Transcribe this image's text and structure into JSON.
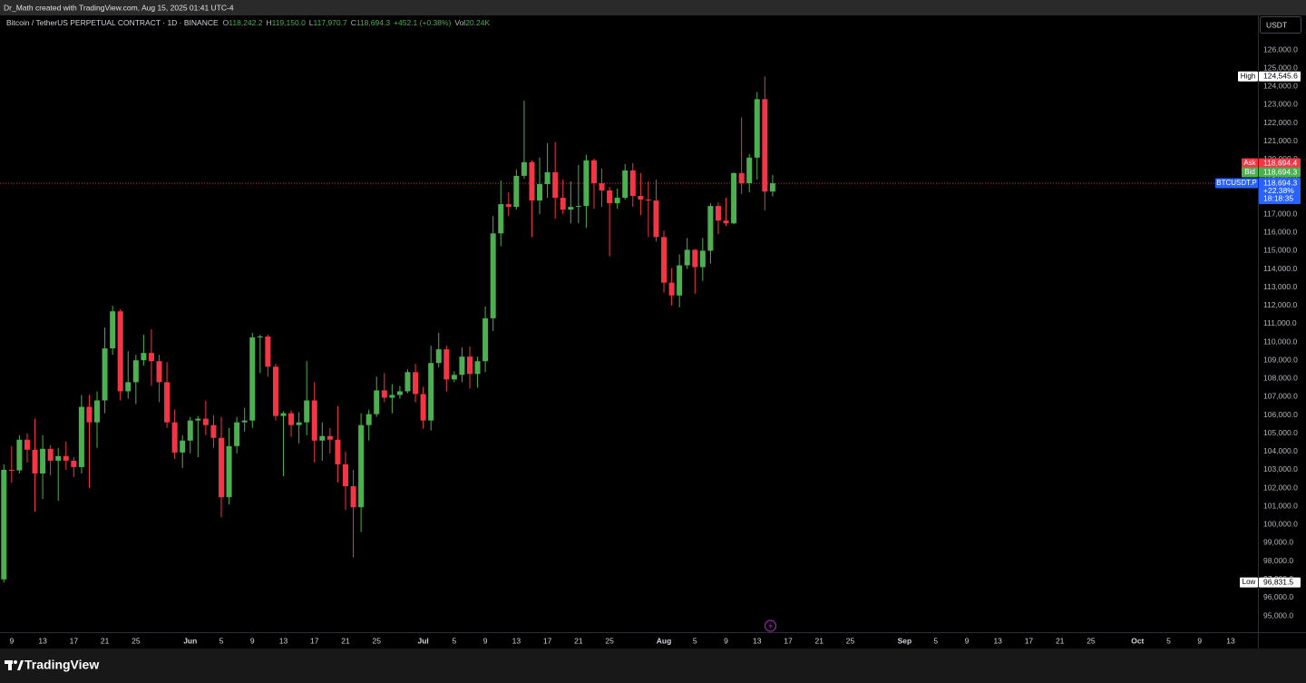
{
  "header": {
    "attribution": "Dr_Math created with TradingView.com, Aug 15, 2025 01:41 UTC-4"
  },
  "footer": {
    "logo": "TradingView"
  },
  "chart_data": {
    "type": "candlestick",
    "title": "Bitcoin / TetherUS PERPETUAL CONTRACT · 1D · BINANCE",
    "ohlc": [
      {
        "key": "O",
        "value": "118,242.2"
      },
      {
        "key": "H",
        "value": "119,150.0"
      },
      {
        "key": "L",
        "value": "117,970.7"
      },
      {
        "key": "C",
        "value": "118,694.3"
      }
    ],
    "change": "+452.1 (+0.38%)",
    "volume": {
      "key": "Vol",
      "value": "20.24K"
    },
    "currency": "USDT",
    "up_color": "#4caf50",
    "down_color": "#f23645",
    "x": [
      "2025-05-08",
      "2025-05-09",
      "2025-05-10",
      "2025-05-11",
      "2025-05-12",
      "2025-05-13",
      "2025-05-14",
      "2025-05-15",
      "2025-05-16",
      "2025-05-17",
      "2025-05-18",
      "2025-05-19",
      "2025-05-20",
      "2025-05-21",
      "2025-05-22",
      "2025-05-23",
      "2025-05-24",
      "2025-05-25",
      "2025-05-26",
      "2025-05-27",
      "2025-05-28",
      "2025-05-29",
      "2025-05-30",
      "2025-05-31",
      "2025-06-01",
      "2025-06-02",
      "2025-06-03",
      "2025-06-04",
      "2025-06-05",
      "2025-06-06",
      "2025-06-07",
      "2025-06-08",
      "2025-06-09",
      "2025-06-10",
      "2025-06-11",
      "2025-06-12",
      "2025-06-13",
      "2025-06-14",
      "2025-06-15",
      "2025-06-16",
      "2025-06-17",
      "2025-06-18",
      "2025-06-19",
      "2025-06-20",
      "2025-06-21",
      "2025-06-22",
      "2025-06-23",
      "2025-06-24",
      "2025-06-25",
      "2025-06-26",
      "2025-06-27",
      "2025-06-28",
      "2025-06-29",
      "2025-06-30",
      "2025-07-01",
      "2025-07-02",
      "2025-07-03",
      "2025-07-04",
      "2025-07-05",
      "2025-07-06",
      "2025-07-07",
      "2025-07-08",
      "2025-07-09",
      "2025-07-10",
      "2025-07-11",
      "2025-07-12",
      "2025-07-13",
      "2025-07-14",
      "2025-07-15",
      "2025-07-16",
      "2025-07-17",
      "2025-07-18",
      "2025-07-19",
      "2025-07-20",
      "2025-07-21",
      "2025-07-22",
      "2025-07-23",
      "2025-07-24",
      "2025-07-25",
      "2025-07-26",
      "2025-07-27",
      "2025-07-28",
      "2025-07-29",
      "2025-07-30",
      "2025-07-31",
      "2025-08-01",
      "2025-08-02",
      "2025-08-03",
      "2025-08-04",
      "2025-08-05",
      "2025-08-06",
      "2025-08-07",
      "2025-08-08",
      "2025-08-09",
      "2025-08-10",
      "2025-08-11",
      "2025-08-12",
      "2025-08-13",
      "2025-08-14",
      "2025-08-15"
    ],
    "open": [
      97000,
      103000,
      102970,
      104650,
      104100,
      102800,
      104150,
      103500,
      103750,
      103500,
      103150,
      106450,
      105600,
      106800,
      109650,
      111680,
      107300,
      107800,
      109000,
      109400,
      108950,
      107800,
      105600,
      103950,
      104600,
      105700,
      105800,
      105450,
      104750,
      101500,
      104300,
      105600,
      105700,
      110250,
      110300,
      108650,
      105950,
      106100,
      105450,
      105600,
      106800,
      104600,
      104850,
      104650,
      103300,
      102100,
      100950,
      105450,
      106050,
      107350,
      106950,
      107100,
      107300,
      108350,
      107150,
      105700,
      108850,
      109600,
      107950,
      108200,
      109200,
      108250,
      108950,
      111300,
      115950,
      117550,
      117400,
      119100,
      119850,
      117750,
      118650,
      119300,
      117900,
      117250,
      117400,
      117450,
      119950,
      118700,
      118300,
      117600,
      117900,
      119400,
      118000,
      117800,
      117750,
      115750,
      113250,
      112550,
      114200,
      115050,
      114100,
      115000,
      117450,
      116650,
      116500,
      119250,
      118700,
      120100,
      123300,
      118242.2
    ],
    "high": [
      103300,
      104300,
      104900,
      105000,
      105800,
      104900,
      104350,
      104200,
      104550,
      103700,
      107100,
      107100,
      107300,
      110800,
      111980,
      111800,
      109500,
      109300,
      110400,
      110700,
      109300,
      108900,
      106300,
      104900,
      105900,
      105950,
      106800,
      106000,
      105900,
      105300,
      105900,
      106400,
      110500,
      110400,
      110400,
      108800,
      106200,
      106250,
      106150,
      108950,
      107800,
      105600,
      105300,
      106500,
      104000,
      103000,
      106100,
      106300,
      108100,
      108300,
      107700,
      107600,
      108500,
      108800,
      107550,
      109800,
      110500,
      109800,
      108400,
      109700,
      109750,
      109200,
      111950,
      116900,
      118850,
      118200,
      119450,
      123218,
      119950,
      120100,
      120900,
      120950,
      118900,
      118800,
      119700,
      120250,
      120050,
      119500,
      118500,
      118400,
      119750,
      119800,
      119250,
      118800,
      118900,
      116100,
      114050,
      114800,
      115700,
      115100,
      115700,
      117600,
      117650,
      117900,
      119300,
      122300,
      120300,
      123700,
      124545.6,
      119150
    ],
    "low": [
      96831.5,
      102300,
      102800,
      103400,
      100700,
      101400,
      102700,
      101300,
      103000,
      102600,
      102800,
      102000,
      104200,
      106100,
      109300,
      106800,
      106900,
      106600,
      108700,
      107600,
      106700,
      105300,
      103600,
      103100,
      103900,
      103700,
      104900,
      104200,
      100400,
      101100,
      103900,
      105100,
      105300,
      108300,
      108100,
      105700,
      102650,
      104800,
      104450,
      104900,
      103400,
      103500,
      103900,
      102300,
      100800,
      98200,
      99600,
      104600,
      105900,
      106700,
      106100,
      106900,
      107200,
      106700,
      105250,
      105150,
      108600,
      107300,
      107800,
      107800,
      107450,
      107500,
      108350,
      110600,
      115250,
      116900,
      117250,
      118950,
      115750,
      117000,
      117900,
      116750,
      117000,
      116500,
      116500,
      116250,
      117300,
      117400,
      114700,
      117300,
      117800,
      117400,
      116950,
      115750,
      115500,
      112700,
      112000,
      111900,
      114000,
      112650,
      113350,
      114300,
      115900,
      116350,
      116450,
      118100,
      118200,
      118900,
      117200,
      117970.7
    ],
    "close": [
      103000,
      102970,
      104650,
      104100,
      102800,
      104150,
      103500,
      103750,
      103500,
      103150,
      106450,
      105600,
      106800,
      109650,
      111680,
      107300,
      107800,
      109000,
      109400,
      108950,
      107800,
      105600,
      103950,
      104600,
      105700,
      105800,
      105450,
      104750,
      101500,
      104300,
      105600,
      105700,
      110250,
      110300,
      108650,
      105950,
      106100,
      105450,
      105600,
      106800,
      104600,
      104850,
      104650,
      103300,
      102100,
      100950,
      105450,
      106050,
      107350,
      106950,
      107100,
      107300,
      108350,
      107150,
      105700,
      108850,
      109600,
      107950,
      108200,
      109200,
      108250,
      108950,
      111300,
      115950,
      117550,
      117400,
      119100,
      119850,
      117750,
      118650,
      119300,
      117900,
      117250,
      117400,
      117450,
      119950,
      118700,
      118300,
      117600,
      117900,
      119400,
      118000,
      117800,
      117750,
      115750,
      113250,
      112550,
      114200,
      115050,
      114100,
      115000,
      117450,
      116650,
      116500,
      119250,
      118700,
      120100,
      123300,
      118242.2,
      118694.3
    ],
    "xlim": [
      "2025-05-08",
      "2025-10-17"
    ],
    "xticks": [
      {
        "value": "2025-05-09",
        "label": "9"
      },
      {
        "value": "2025-05-13",
        "label": "13"
      },
      {
        "value": "2025-05-17",
        "label": "17"
      },
      {
        "value": "2025-05-21",
        "label": "21"
      },
      {
        "value": "2025-05-25",
        "label": "25"
      },
      {
        "value": "2025-06-01",
        "label": "Jun"
      },
      {
        "value": "2025-06-05",
        "label": "5"
      },
      {
        "value": "2025-06-09",
        "label": "9"
      },
      {
        "value": "2025-06-13",
        "label": "13"
      },
      {
        "value": "2025-06-17",
        "label": "17"
      },
      {
        "value": "2025-06-21",
        "label": "21"
      },
      {
        "value": "2025-06-25",
        "label": "25"
      },
      {
        "value": "2025-07-01",
        "label": "Jul"
      },
      {
        "value": "2025-07-05",
        "label": "5"
      },
      {
        "value": "2025-07-09",
        "label": "9"
      },
      {
        "value": "2025-07-13",
        "label": "13"
      },
      {
        "value": "2025-07-17",
        "label": "17"
      },
      {
        "value": "2025-07-21",
        "label": "21"
      },
      {
        "value": "2025-07-25",
        "label": "25"
      },
      {
        "value": "2025-08-01",
        "label": "Aug"
      },
      {
        "value": "2025-08-05",
        "label": "5"
      },
      {
        "value": "2025-08-09",
        "label": "9"
      },
      {
        "value": "2025-08-13",
        "label": "13"
      },
      {
        "value": "2025-08-17",
        "label": "17"
      },
      {
        "value": "2025-08-21",
        "label": "21"
      },
      {
        "value": "2025-08-25",
        "label": "25"
      },
      {
        "value": "2025-09-01",
        "label": "Sep"
      },
      {
        "value": "2025-09-05",
        "label": "5"
      },
      {
        "value": "2025-09-09",
        "label": "9"
      },
      {
        "value": "2025-09-13",
        "label": "13"
      },
      {
        "value": "2025-09-17",
        "label": "17"
      },
      {
        "value": "2025-09-21",
        "label": "21"
      },
      {
        "value": "2025-09-25",
        "label": "25"
      },
      {
        "value": "2025-10-01",
        "label": "Oct"
      },
      {
        "value": "2025-10-05",
        "label": "5"
      },
      {
        "value": "2025-10-09",
        "label": "9"
      },
      {
        "value": "2025-10-13",
        "label": "13"
      }
    ],
    "ylim": [
      94106,
      127888
    ],
    "yticks": [
      {
        "value": 95000,
        "label": "95,000.0"
      },
      {
        "value": 96000,
        "label": "96,000.0"
      },
      {
        "value": 97000,
        "label": "97,000.0"
      },
      {
        "value": 98000,
        "label": "98,000.0"
      },
      {
        "value": 99000,
        "label": "99,000.0"
      },
      {
        "value": 100000,
        "label": "100,000.0"
      },
      {
        "value": 101000,
        "label": "101,000.0"
      },
      {
        "value": 102000,
        "label": "102,000.0"
      },
      {
        "value": 103000,
        "label": "103,000.0"
      },
      {
        "value": 104000,
        "label": "104,000.0"
      },
      {
        "value": 105000,
        "label": "105,000.0"
      },
      {
        "value": 106000,
        "label": "106,000.0"
      },
      {
        "value": 107000,
        "label": "107,000.0"
      },
      {
        "value": 108000,
        "label": "108,000.0"
      },
      {
        "value": 109000,
        "label": "109,000.0"
      },
      {
        "value": 110000,
        "label": "110,000.0"
      },
      {
        "value": 111000,
        "label": "111,000.0"
      },
      {
        "value": 112000,
        "label": "112,000.0"
      },
      {
        "value": 113000,
        "label": "113,000.0"
      },
      {
        "value": 114000,
        "label": "114,000.0"
      },
      {
        "value": 115000,
        "label": "115,000.0"
      },
      {
        "value": 116000,
        "label": "116,000.0"
      },
      {
        "value": 117000,
        "label": "117,000.0"
      },
      {
        "value": 118000,
        "label": "118,000.0"
      },
      {
        "value": 119000,
        "label": "119,000.0"
      },
      {
        "value": 120000,
        "label": "120,000.0"
      },
      {
        "value": 121000,
        "label": "121,000.0"
      },
      {
        "value": 122000,
        "label": "122,000.0"
      },
      {
        "value": 123000,
        "label": "123,000.0"
      },
      {
        "value": 124000,
        "label": "124,000.0"
      },
      {
        "value": 125000,
        "label": "125,000.0"
      },
      {
        "value": 126000,
        "label": "126,000.0"
      }
    ],
    "high_marker": {
      "name": "High",
      "value": 124545.6,
      "label": "124,545.6"
    },
    "low_marker": {
      "name": "Low",
      "value": 96831.5,
      "label": "96,831.5"
    },
    "ask": {
      "name": "Ask",
      "value": 118694.4,
      "label": "118,694.4"
    },
    "bid": {
      "name": "Bid",
      "value": 118694.3,
      "label": "118,694.3"
    },
    "last": {
      "name": "BTCUSDT.P",
      "value": 118694.3,
      "label": "118,694.3",
      "change": "+22.38%",
      "countdown": "18:18:35"
    }
  }
}
